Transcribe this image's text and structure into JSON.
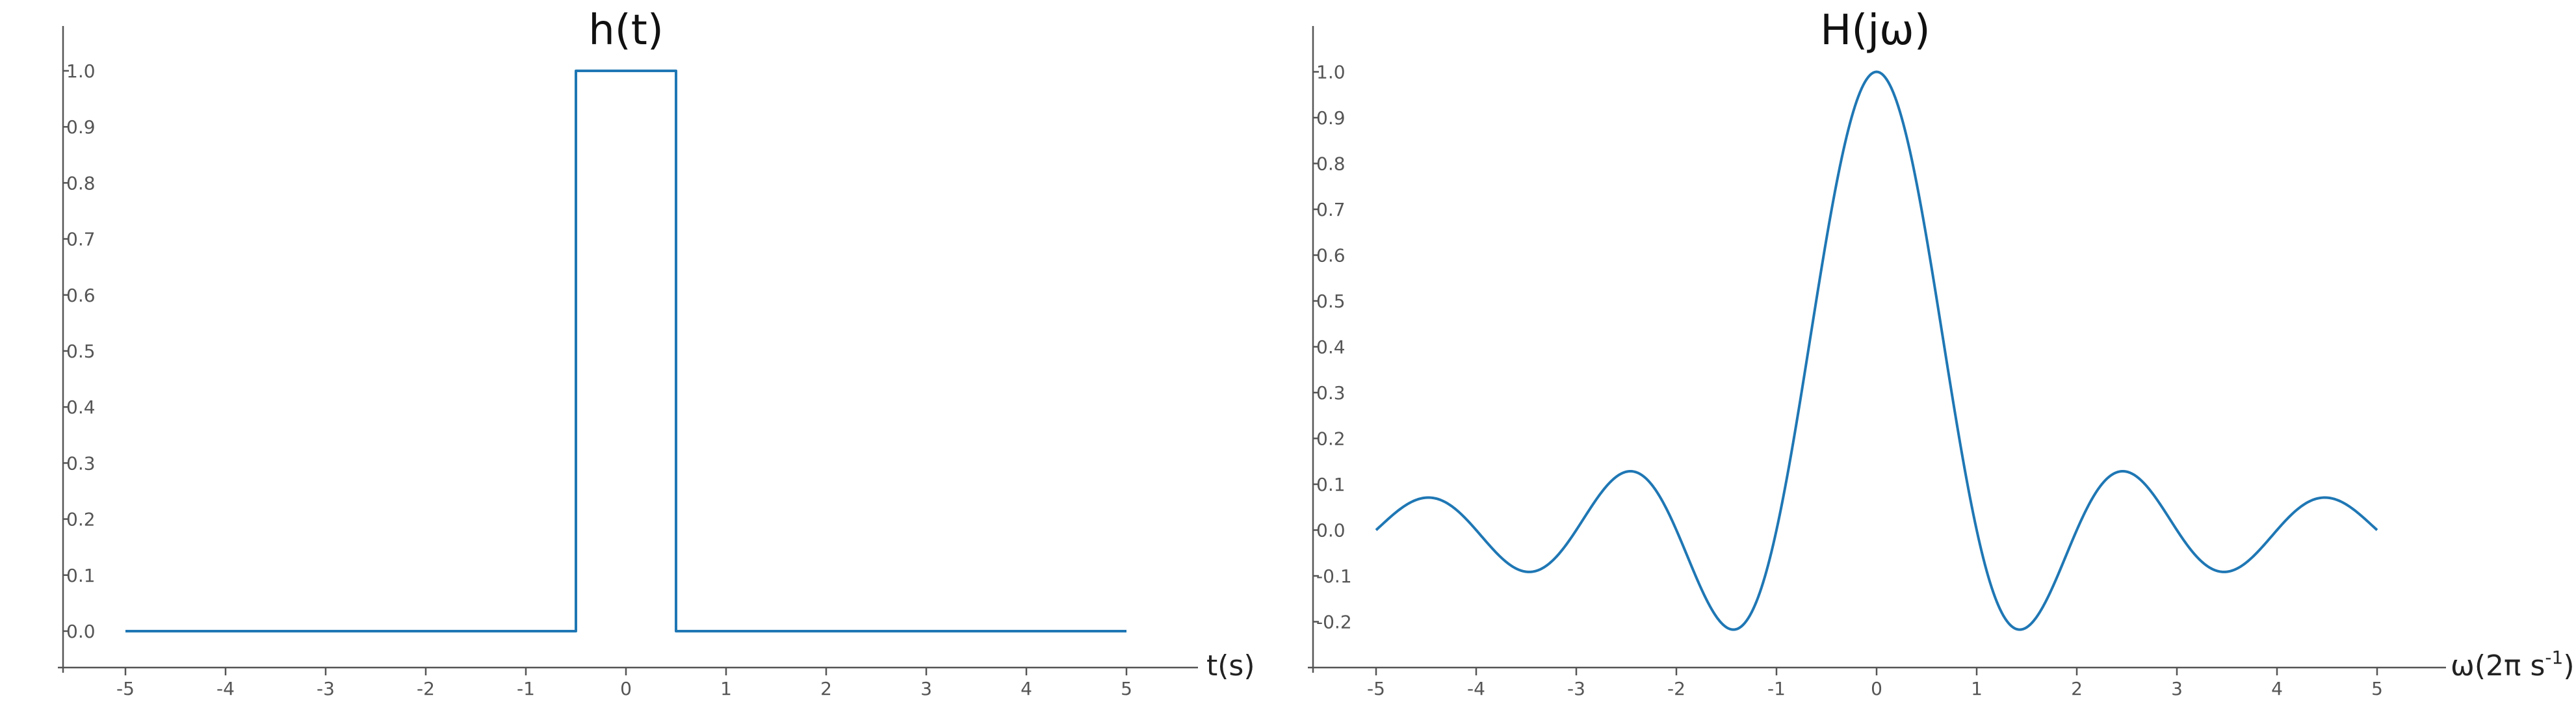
{
  "colors": {
    "line": "#1f77b4",
    "axis": "#555555"
  },
  "chart_data": [
    {
      "type": "line",
      "title": "h(t)",
      "xlabel": "t(s)",
      "ylabel": "",
      "xlim": [
        -5.6,
        5.6
      ],
      "ylim": [
        -0.065,
        1.08
      ],
      "xticks": [
        -5,
        -4,
        -3,
        -2,
        -1,
        0,
        1,
        2,
        3,
        4,
        5
      ],
      "xtick_labels": [
        "-5",
        "-4",
        "-3",
        "-2",
        "-1",
        "0",
        "1",
        "2",
        "3",
        "4",
        "5"
      ],
      "yticks": [
        0.0,
        0.1,
        0.2,
        0.3,
        0.4,
        0.5,
        0.6,
        0.7,
        0.8,
        0.9,
        1.0
      ],
      "ytick_labels": [
        "0.0",
        "0.1",
        "0.2",
        "0.3",
        "0.4",
        "0.5",
        "0.6",
        "0.7",
        "0.8",
        "0.9",
        "1.0"
      ],
      "grid": false,
      "legend": "none",
      "series": [
        {
          "x": [
            -5,
            -0.5,
            -0.5,
            0.5,
            0.5,
            5
          ],
          "y": [
            0,
            0,
            1,
            1,
            0,
            0
          ]
        }
      ]
    },
    {
      "type": "line",
      "title": "H(jω)",
      "xlabel": "ω(2π s",
      "xlabel_superscript": "-1",
      "xlabel_suffix": ")",
      "ylabel": "",
      "xlim": [
        -5.6,
        5.6
      ],
      "ylim": [
        -0.3,
        1.1
      ],
      "xticks": [
        -5,
        -4,
        -3,
        -2,
        -1,
        0,
        1,
        2,
        3,
        4,
        5
      ],
      "xtick_labels": [
        "-5",
        "-4",
        "-3",
        "-2",
        "-1",
        "0",
        "1",
        "2",
        "3",
        "4",
        "5"
      ],
      "yticks": [
        -0.2,
        -0.1,
        0.0,
        0.1,
        0.2,
        0.3,
        0.4,
        0.5,
        0.6,
        0.7,
        0.8,
        0.9,
        1.0
      ],
      "ytick_labels": [
        "-0.2",
        "-0.1",
        "0.0",
        "0.1",
        "0.2",
        "0.3",
        "0.4",
        "0.5",
        "0.6",
        "0.7",
        "0.8",
        "0.9",
        "1.0"
      ],
      "grid": false,
      "legend": "none",
      "series": [
        {
          "x": [
            -5,
            -4.75,
            -4.5,
            -4.25,
            -4,
            -3.75,
            -3.5,
            -3.25,
            -3,
            -2.75,
            -2.5,
            -2.25,
            -2,
            -1.75,
            -1.5,
            -1.4,
            -1.25,
            -1,
            -0.75,
            -0.5,
            -0.25,
            0,
            0.25,
            0.5,
            0.75,
            1,
            1.25,
            1.4,
            1.5,
            1.75,
            2,
            2.25,
            2.5,
            2.75,
            3,
            3.25,
            3.5,
            3.75,
            4,
            4.25,
            4.5,
            4.75,
            5
          ],
          "y": [
            0.0,
            0.0492,
            0.0707,
            0.053,
            0.0,
            -0.06,
            -0.0909,
            -0.0693,
            0.0,
            0.0818,
            0.1273,
            0.1,
            0.0,
            -0.1286,
            -0.2122,
            -0.2162,
            -0.1801,
            0.0,
            0.3001,
            0.6366,
            0.9003,
            1.0,
            0.9003,
            0.6366,
            0.3001,
            0.0,
            -0.1801,
            -0.2162,
            -0.2122,
            -0.1286,
            0.0,
            0.1,
            0.1273,
            0.0818,
            0.0,
            -0.0693,
            -0.0909,
            -0.06,
            0.0,
            0.053,
            0.0707,
            0.0492,
            0.0
          ]
        }
      ]
    }
  ]
}
